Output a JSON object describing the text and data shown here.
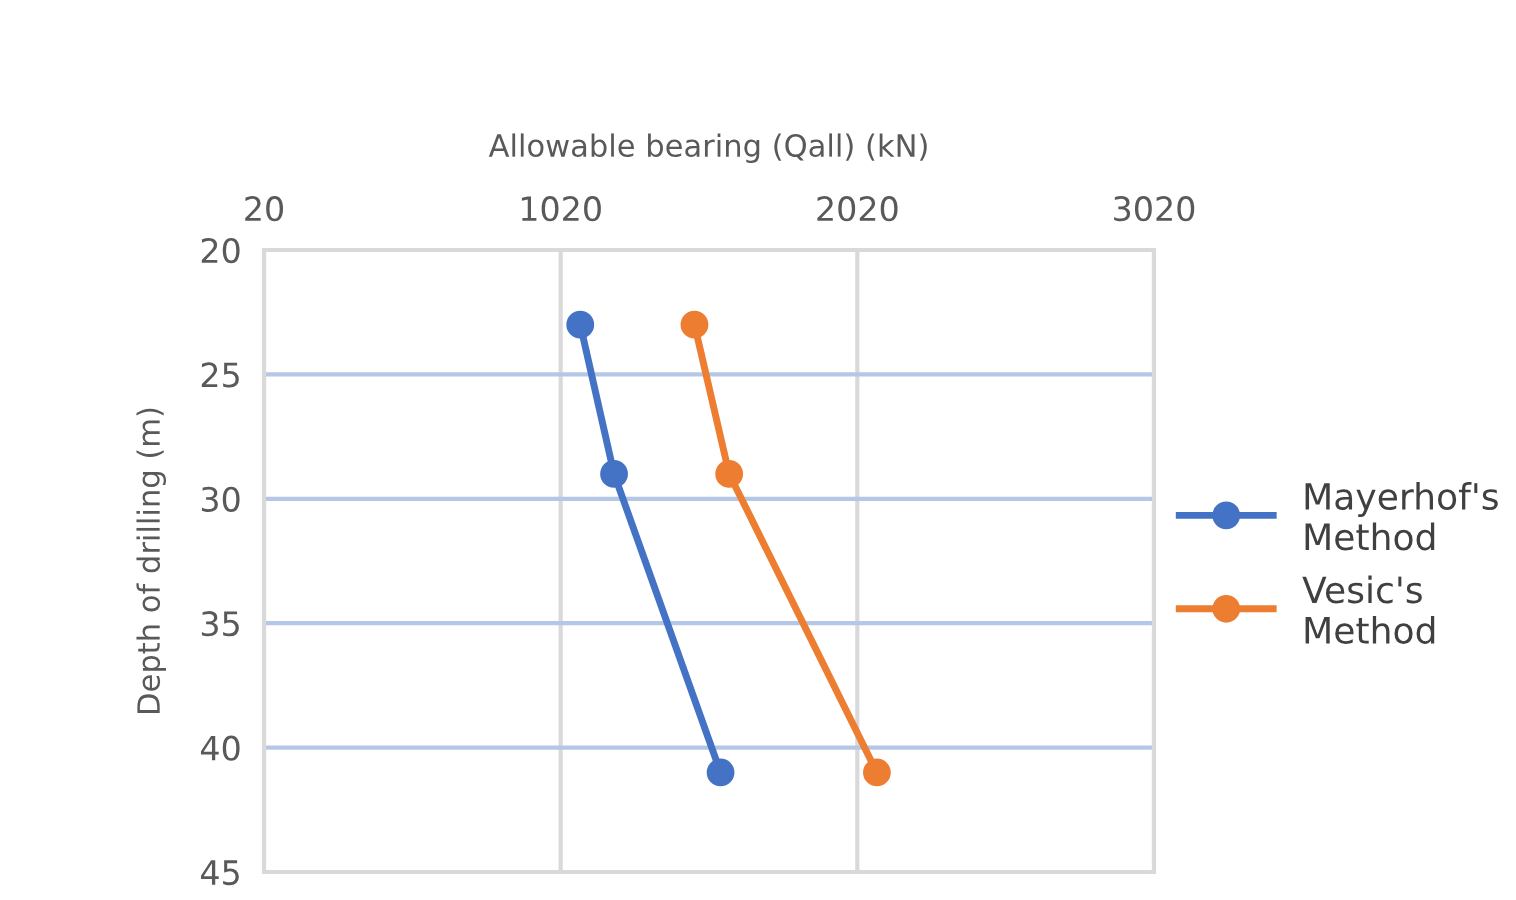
{
  "chart_data": {
    "type": "line",
    "xlabel": "Allowable bearing (Qall) (kN)",
    "ylabel": "Depth of drilling (m)",
    "series": [
      {
        "name": "Mayerhof's Method",
        "color": "#4472c4",
        "x": [
          1086,
          1200,
          1559
        ],
        "values": [
          23,
          29,
          41
        ]
      },
      {
        "name": "Vesic's Method",
        "color": "#ed7d31",
        "x": [
          1471,
          1588,
          2086
        ],
        "values": [
          23,
          29,
          41
        ]
      }
    ],
    "xlim": [
      20,
      3020
    ],
    "xticks": [
      20,
      1020,
      2020,
      3020
    ],
    "ylim": [
      45,
      20
    ],
    "yticks": [
      20,
      25,
      30,
      35,
      40,
      45
    ],
    "grid": true,
    "legend": "right",
    "marker": "circle",
    "line_style": "solid"
  }
}
